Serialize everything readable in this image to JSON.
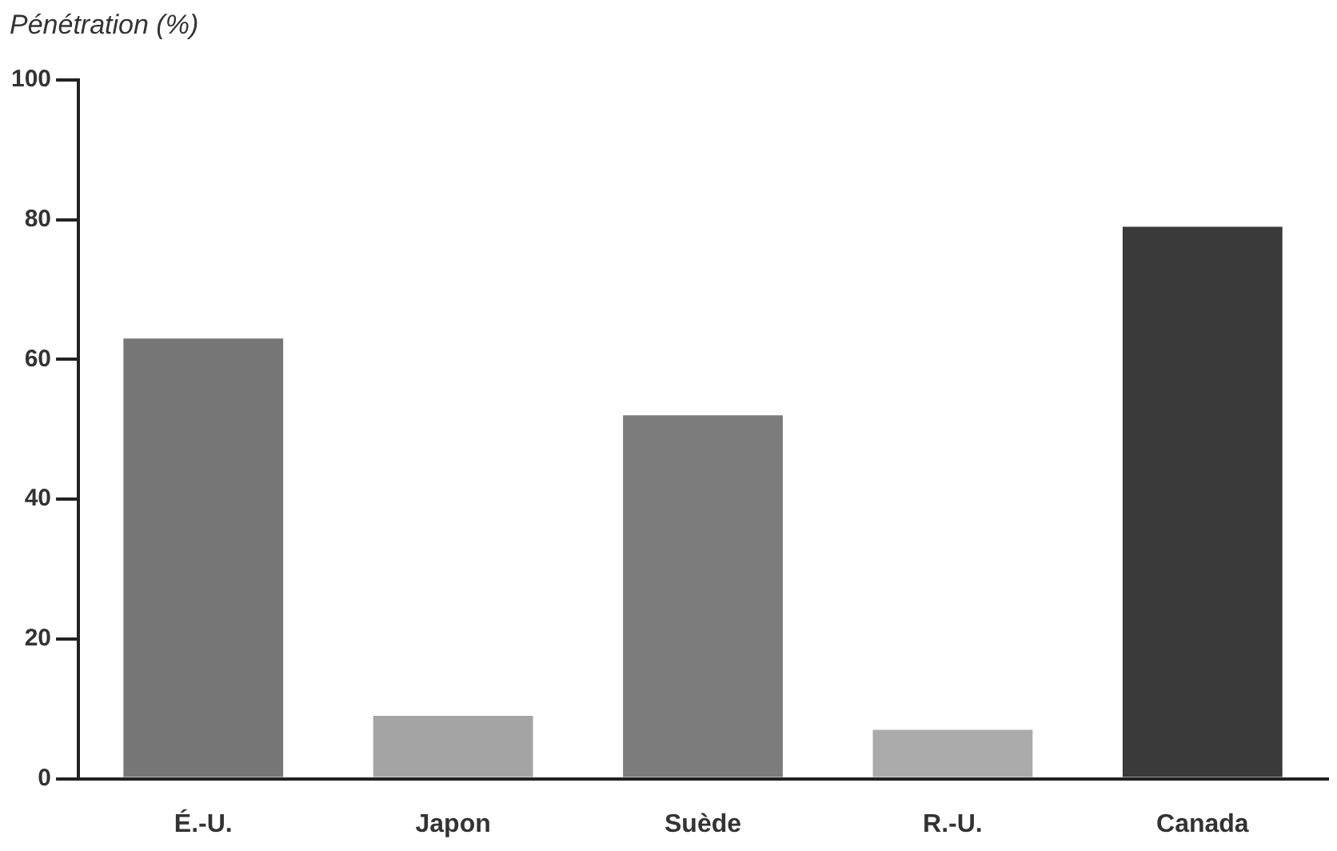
{
  "chart_data": {
    "type": "bar",
    "ylabel": "Pénétration (%)",
    "categories": [
      "É.-U.",
      "Japon",
      "Suède",
      "R.-U.",
      "Canada"
    ],
    "values": [
      63,
      9,
      52,
      7,
      79
    ],
    "colors": [
      "#777777",
      "#a4a4a4",
      "#7c7c7c",
      "#aaaaaa",
      "#3a3a3a"
    ],
    "ylim": [
      0,
      100
    ],
    "yticks": [
      0,
      20,
      40,
      60,
      80,
      100
    ],
    "grid": false,
    "legend": false
  }
}
